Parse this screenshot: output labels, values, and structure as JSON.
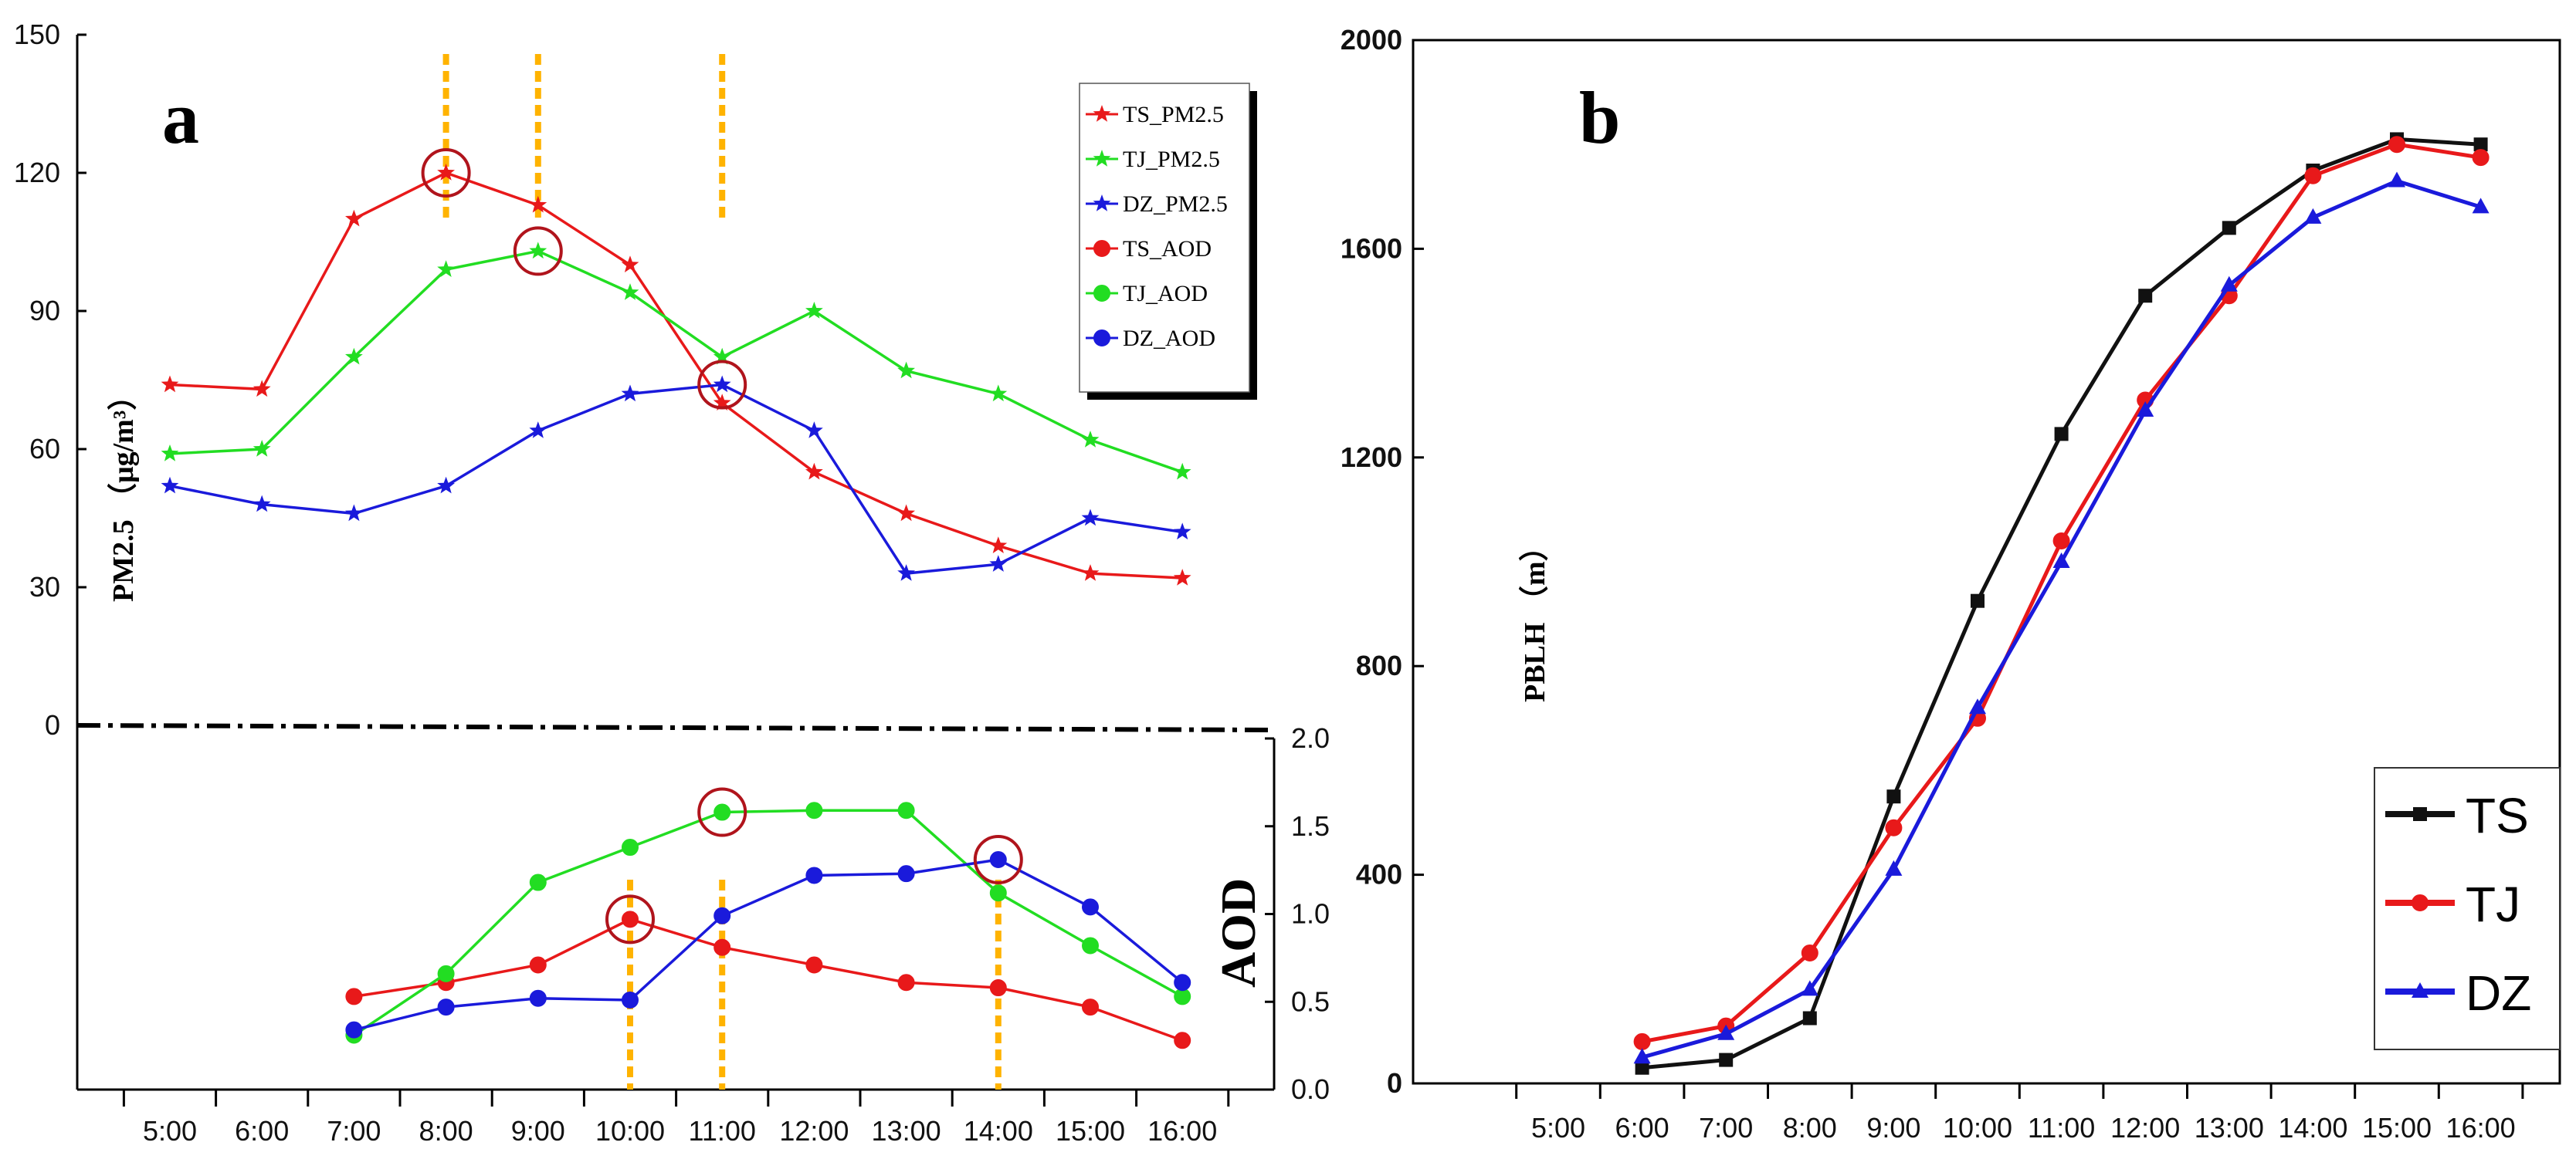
{
  "panel_a": {
    "label": "a",
    "ylabel_top": "PM2.5 （μg/m³）",
    "ylabel_bottom": "AOD",
    "chart_data": [
      {
        "type": "line",
        "title": "",
        "xlabel": "",
        "ylabel": "PM2.5 （μg/m³）",
        "categories": [
          "5:00",
          "6:00",
          "7:00",
          "8:00",
          "9:00",
          "10:00",
          "11:00",
          "12:00",
          "13:00",
          "14:00",
          "15:00",
          "16:00"
        ],
        "ylim": [
          0,
          150
        ],
        "yticks": [
          "0",
          "30",
          "60",
          "90",
          "120",
          "150"
        ],
        "series": [
          {
            "name": "TS_PM2.5",
            "color": "#e8191a",
            "marker": "star",
            "values": [
              74,
              73,
              110,
              120,
              113,
              100,
              70,
              55,
              46,
              39,
              33,
              32
            ]
          },
          {
            "name": "TJ_PM2.5",
            "color": "#22dd22",
            "marker": "star",
            "values": [
              59,
              60,
              80,
              99,
              103,
              94,
              80,
              90,
              77,
              72,
              62,
              55
            ]
          },
          {
            "name": "DZ_PM2.5",
            "color": "#1a1adb",
            "marker": "star",
            "values": [
              52,
              48,
              46,
              52,
              64,
              72,
              74,
              64,
              33,
              35,
              45,
              42
            ]
          }
        ],
        "highlights": [
          {
            "series": "TS_PM2.5",
            "category": "8:00"
          },
          {
            "series": "TJ_PM2.5",
            "category": "9:00"
          },
          {
            "series": "DZ_PM2.5",
            "category": "11:00"
          }
        ],
        "guides": [
          "8:00",
          "9:00",
          "11:00"
        ]
      },
      {
        "type": "line",
        "title": "",
        "xlabel": "",
        "ylabel": "AOD",
        "categories": [
          "5:00",
          "6:00",
          "7:00",
          "8:00",
          "9:00",
          "10:00",
          "11:00",
          "12:00",
          "13:00",
          "14:00",
          "15:00",
          "16:00"
        ],
        "ylim": [
          0,
          2.0
        ],
        "yticks": [
          "0.0",
          "0.5",
          "1.0",
          "1.5",
          "2.0"
        ],
        "series": [
          {
            "name": "TS_AOD",
            "color": "#e8191a",
            "marker": "circle",
            "values": [
              null,
              null,
              0.53,
              0.61,
              0.71,
              0.97,
              0.81,
              0.71,
              0.61,
              0.58,
              0.47,
              0.28
            ]
          },
          {
            "name": "TJ_AOD",
            "color": "#22dd22",
            "marker": "circle",
            "values": [
              null,
              null,
              0.31,
              0.66,
              1.18,
              1.38,
              1.58,
              1.59,
              1.59,
              1.12,
              0.82,
              0.53
            ]
          },
          {
            "name": "DZ_AOD",
            "color": "#1a1adb",
            "marker": "circle",
            "values": [
              null,
              null,
              0.34,
              0.47,
              0.52,
              0.51,
              0.99,
              1.22,
              1.23,
              1.31,
              1.04,
              0.61
            ]
          }
        ],
        "highlights": [
          {
            "series": "TS_AOD",
            "category": "10:00"
          },
          {
            "series": "TJ_AOD",
            "category": "11:00"
          },
          {
            "series": "DZ_AOD",
            "category": "14:00"
          }
        ],
        "guides": [
          "10:00",
          "11:00",
          "14:00"
        ]
      }
    ],
    "guide_color": "#ffb300",
    "highlight_color": "#b0141c",
    "legend": [
      "TS_PM2.5",
      "TJ_PM2.5",
      "DZ_PM2.5",
      "TS_AOD",
      "TJ_AOD",
      "DZ_AOD"
    ]
  },
  "panel_b": {
    "label": "b",
    "ylabel": "PBLH （m）",
    "chart_data": {
      "type": "line",
      "title": "",
      "xlabel": "",
      "ylabel": "PBLH （m）",
      "categories": [
        "5:00",
        "6:00",
        "7:00",
        "8:00",
        "9:00",
        "10:00",
        "11:00",
        "12:00",
        "13:00",
        "14:00",
        "15:00",
        "16:00"
      ],
      "ylim": [
        0,
        2000
      ],
      "yticks": [
        "0",
        "400",
        "800",
        "1200",
        "1600",
        "2000"
      ],
      "series": [
        {
          "name": "TS",
          "color": "#111111",
          "marker": "square",
          "values": [
            null,
            30,
            45,
            125,
            550,
            925,
            1245,
            1510,
            1640,
            1750,
            1810,
            1800
          ]
        },
        {
          "name": "TJ",
          "color": "#e8191a",
          "marker": "circle",
          "values": [
            null,
            80,
            110,
            250,
            490,
            700,
            1040,
            1310,
            1510,
            1740,
            1800,
            1775
          ]
        },
        {
          "name": "DZ",
          "color": "#1a1adb",
          "marker": "triangle",
          "values": [
            null,
            50,
            95,
            180,
            410,
            720,
            1000,
            1290,
            1530,
            1660,
            1730,
            1680
          ]
        }
      ],
      "legend": [
        "TS",
        "TJ",
        "DZ"
      ]
    }
  }
}
